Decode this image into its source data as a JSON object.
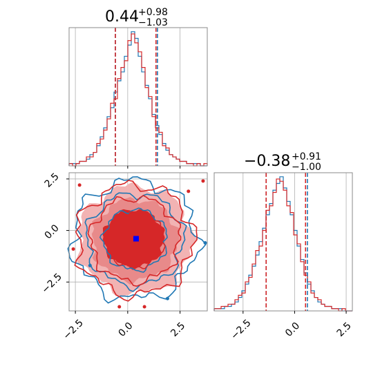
{
  "colors": {
    "blue": "#1f77b4",
    "red": "#d62728",
    "grid": "#b0b0b0",
    "truth": "#0000ff",
    "fill_light": "#f2b3b3",
    "fill_mid": "#e88a8a"
  },
  "chart_data": [
    {
      "panel": "x marginal",
      "type": "histogram",
      "title": {
        "main": "0.44",
        "sup": "+0.98",
        "sub": "−1.03"
      },
      "xlim": [
        -2.8,
        3.8
      ],
      "bins_edges_range": [
        -2.8,
        3.8
      ],
      "series": [
        {
          "color": "blue",
          "counts": [
            1,
            1,
            1,
            2,
            2,
            3,
            5,
            6,
            9,
            13,
            17,
            22,
            26,
            33,
            38,
            42,
            49,
            54,
            60,
            57,
            49,
            42,
            36,
            30,
            23,
            18,
            14,
            10,
            7,
            5,
            4,
            3,
            2,
            2,
            1,
            1,
            1,
            1,
            0,
            0
          ]
        },
        {
          "color": "red",
          "counts": [
            1,
            0,
            1,
            2,
            2,
            4,
            4,
            6,
            10,
            12,
            16,
            21,
            28,
            30,
            39,
            44,
            47,
            56,
            59,
            55,
            51,
            44,
            35,
            31,
            22,
            17,
            15,
            9,
            8,
            5,
            4,
            3,
            2,
            2,
            1,
            1,
            0,
            1,
            0,
            1
          ]
        }
      ],
      "quantile_lines": {
        "blue": [
          -0.59,
          1.42
        ],
        "red": [
          -0.59,
          1.35
        ]
      },
      "xticks": [
        -2.5,
        0.0,
        2.5
      ]
    },
    {
      "panel": "y marginal",
      "type": "histogram",
      "title": {
        "main": "−0.38",
        "sup": "+0.91",
        "sub": "−1.00"
      },
      "xlim": [
        -3.9,
        2.8
      ],
      "xticks": [
        -2.5,
        0.0,
        2.5
      ],
      "xtick_labels": [
        "−2.5",
        "0.0",
        "2.5"
      ],
      "series": [
        {
          "color": "blue",
          "counts": [
            1,
            1,
            1,
            2,
            2,
            3,
            4,
            6,
            9,
            12,
            16,
            20,
            25,
            31,
            37,
            43,
            48,
            54,
            57,
            60,
            55,
            49,
            43,
            36,
            29,
            23,
            17,
            12,
            9,
            6,
            4,
            3,
            2,
            2,
            1,
            1,
            1,
            0,
            0,
            0
          ]
        },
        {
          "color": "red",
          "counts": [
            1,
            1,
            2,
            2,
            3,
            3,
            5,
            7,
            8,
            13,
            15,
            21,
            27,
            29,
            36,
            45,
            47,
            53,
            59,
            58,
            54,
            47,
            44,
            34,
            30,
            22,
            16,
            13,
            8,
            6,
            5,
            3,
            2,
            2,
            1,
            1,
            0,
            1,
            0,
            0
          ]
        }
      ],
      "quantile_lines": {
        "blue": [
          -1.38,
          0.62
        ],
        "red": [
          -1.38,
          0.53
        ]
      }
    },
    {
      "panel": "2d joint",
      "type": "contour",
      "xlim": [
        -2.8,
        3.8
      ],
      "ylim": [
        -3.9,
        2.8
      ],
      "xticks": [
        -2.5,
        0.0,
        2.5
      ],
      "xtick_labels": [
        "−2.5",
        "0.0",
        "2.5"
      ],
      "yticks": [
        -2.5,
        0.0,
        2.5
      ],
      "ytick_labels": [
        "−2.5",
        "0.0",
        "2.5"
      ],
      "truth_point": {
        "x": 0.4,
        "y": -0.4
      }
    }
  ]
}
